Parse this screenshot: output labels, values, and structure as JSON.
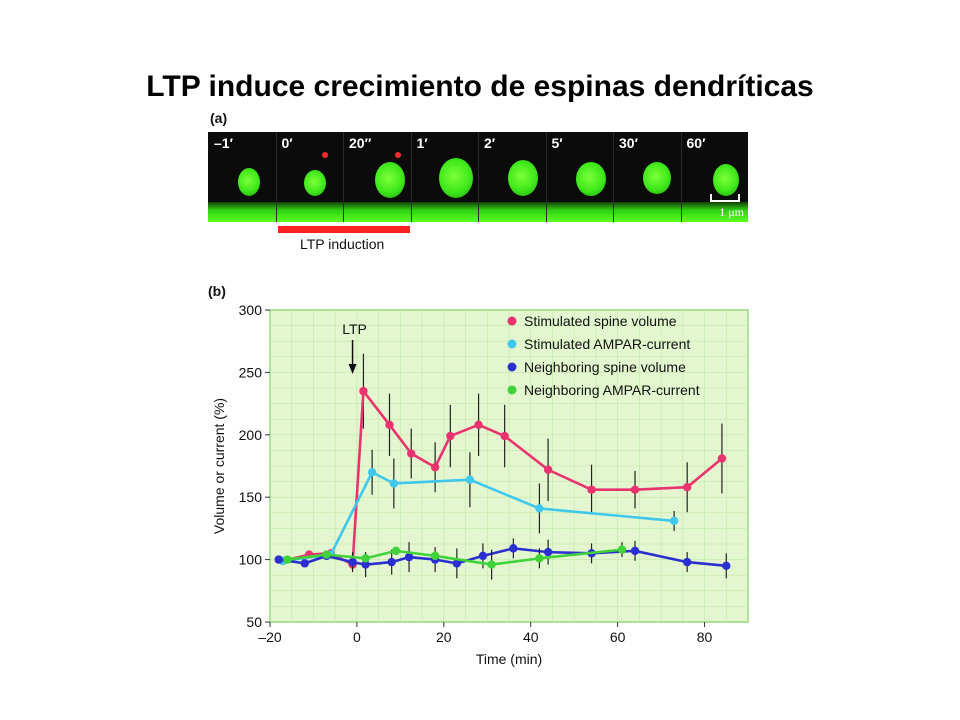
{
  "slide_title": "LTP induce crecimiento de espinas dendríticas",
  "panel_a": {
    "label": "(a)",
    "frames": [
      "–1′",
      "0′",
      "20″",
      "1′",
      "2′",
      "5′",
      "30′",
      "60′"
    ],
    "scale_label": "1 μm",
    "induction_label": "LTP induction",
    "colors": {
      "spine": "#3ee81a",
      "background": "#0b0b0b",
      "induction_bar": "#ff2222"
    }
  },
  "panel_b": {
    "label": "(b)"
  },
  "chart_data": {
    "type": "line",
    "title": "",
    "xlabel": "Time (min)",
    "ylabel": "Volume or current (%)",
    "xlim": [
      -20,
      90
    ],
    "ylim": [
      50,
      300
    ],
    "xticks": [
      -20,
      0,
      20,
      40,
      60,
      80
    ],
    "yticks": [
      50,
      100,
      150,
      200,
      250,
      300
    ],
    "xtick_labels": [
      "–20",
      "0",
      "20",
      "40",
      "60",
      "80"
    ],
    "ytick_labels": [
      "50",
      "100",
      "150",
      "200",
      "250",
      "300"
    ],
    "annotation": {
      "text": "LTP",
      "x": -1
    },
    "legend": [
      "Stimulated spine volume",
      "Stimulated AMPAR-current",
      "Neighboring spine volume",
      "Neighboring AMPAR-current"
    ],
    "legend_position": "top-right",
    "background": "#e4f6cf",
    "series": [
      {
        "name": "Stimulated spine volume",
        "color": "#e8336e",
        "x": [
          -17,
          -11,
          -6,
          -1,
          1.5,
          7.5,
          12.5,
          18,
          21.5,
          28,
          34,
          44,
          54,
          64,
          76,
          84
        ],
        "y": [
          99,
          104,
          105,
          96,
          235,
          208,
          185,
          174,
          199,
          208,
          199,
          172,
          156,
          156,
          158,
          181
        ],
        "err": [
          0,
          0,
          0,
          0,
          30,
          25,
          20,
          20,
          25,
          25,
          25,
          25,
          20,
          15,
          20,
          28
        ]
      },
      {
        "name": "Stimulated AMPAR-current",
        "color": "#3fc8ec",
        "x": [
          -17,
          -6,
          3.5,
          8.5,
          26,
          42,
          73
        ],
        "y": [
          99,
          104,
          170,
          161,
          164,
          141,
          131
        ],
        "err": [
          0,
          0,
          18,
          20,
          22,
          20,
          8
        ]
      },
      {
        "name": "Neighboring spine volume",
        "color": "#2b2fd0",
        "x": [
          -18,
          -12,
          -7,
          -1,
          2,
          8,
          12,
          18,
          23,
          29,
          36,
          44,
          54,
          64,
          76,
          85
        ],
        "y": [
          100,
          97,
          103,
          98,
          96,
          98,
          102,
          100,
          97,
          103,
          109,
          106,
          105,
          107,
          98,
          95
        ],
        "err": [
          0,
          0,
          0,
          8,
          10,
          10,
          12,
          10,
          12,
          10,
          8,
          10,
          8,
          8,
          8,
          10
        ]
      },
      {
        "name": "Neighboring AMPAR-current",
        "color": "#3fd23a",
        "x": [
          -16,
          -7,
          2,
          9,
          18,
          31,
          42,
          61
        ],
        "y": [
          100,
          104,
          101,
          107,
          103,
          96,
          101,
          108
        ],
        "err": [
          0,
          0,
          0,
          0,
          0,
          12,
          8,
          6
        ]
      }
    ]
  }
}
